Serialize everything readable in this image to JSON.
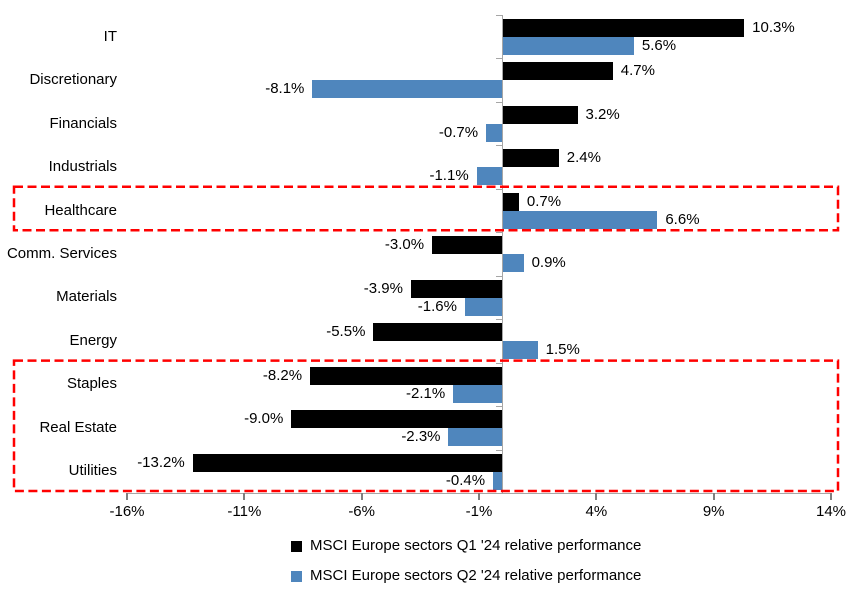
{
  "chart_data": {
    "type": "bar",
    "orientation": "horizontal",
    "title": "",
    "categories": [
      "IT",
      "Discretionary",
      "Financials",
      "Industrials",
      "Healthcare",
      "Comm. Services",
      "Materials",
      "Energy",
      "Staples",
      "Real Estate",
      "Utilities"
    ],
    "series": [
      {
        "name": "MSCI Europe sectors Q1 '24 relative performance",
        "color": "#000000",
        "values": [
          10.3,
          4.7,
          3.2,
          2.4,
          0.7,
          -3.0,
          -3.9,
          -5.5,
          -8.2,
          -9.0,
          -13.2
        ],
        "labels": [
          "10.3%",
          "4.7%",
          "3.2%",
          "2.4%",
          "0.7%",
          "-3.0%",
          "-3.9%",
          "-5.5%",
          "-8.2%",
          "-9.0%",
          "-13.2%"
        ]
      },
      {
        "name": "MSCI Europe sectors Q2 '24 relative performance",
        "color": "#4f86bd",
        "values": [
          5.6,
          -8.1,
          -0.7,
          -1.1,
          6.6,
          0.9,
          -1.6,
          1.5,
          -2.1,
          -2.3,
          -0.4
        ],
        "labels": [
          "5.6%",
          "-8.1%",
          "-0.7%",
          "-1.1%",
          "6.6%",
          "0.9%",
          "-1.6%",
          "1.5%",
          "-2.1%",
          "-2.3%",
          "-0.4%"
        ]
      }
    ],
    "x_axis": {
      "min": -16,
      "max": 14,
      "tick_values": [
        -16,
        -11,
        -6,
        -1,
        4,
        9,
        14
      ],
      "tick_labels": [
        "-16%",
        "-11%",
        "-6%",
        "-1%",
        "4%",
        "9%",
        "14%"
      ]
    },
    "grid": false,
    "legend_position": "bottom",
    "highlights": [
      {
        "categories": [
          "Healthcare"
        ],
        "color": "#ff0000",
        "style": "dashed"
      },
      {
        "categories": [
          "Staples",
          "Real Estate",
          "Utilities"
        ],
        "color": "#ff0000",
        "style": "dashed"
      }
    ]
  }
}
